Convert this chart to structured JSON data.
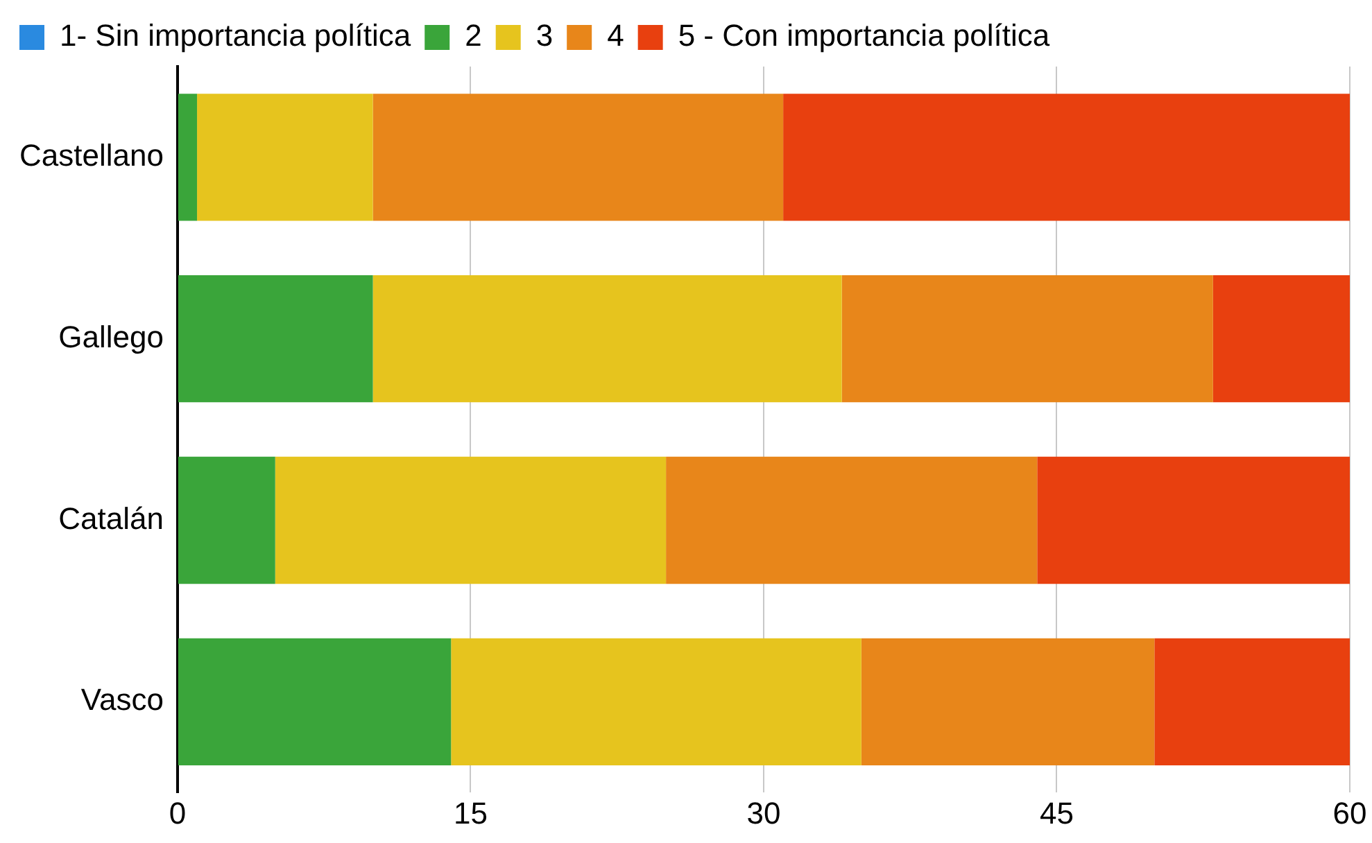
{
  "chart_data": {
    "type": "bar",
    "orientation": "horizontal",
    "stacked": true,
    "categories": [
      "Castellano",
      "Gallego",
      "Catalán",
      "Vasco"
    ],
    "series": [
      {
        "name": "1- Sin importancia política",
        "color": "#2a8ae0",
        "values": [
          0,
          0,
          0,
          0
        ]
      },
      {
        "name": "2",
        "color": "#3aa53a",
        "values": [
          1,
          10,
          5,
          14
        ]
      },
      {
        "name": "3",
        "color": "#e6c41e",
        "values": [
          9,
          24,
          20,
          21
        ]
      },
      {
        "name": "4",
        "color": "#e8861a",
        "values": [
          21,
          19,
          19,
          15
        ]
      },
      {
        "name": "5 - Con importancia política",
        "color": "#e8400f",
        "values": [
          29,
          7,
          16,
          10
        ]
      }
    ],
    "xlim": [
      0,
      60
    ],
    "xticks": [
      0,
      15,
      30,
      45,
      60
    ],
    "grid": "x",
    "legend": "top left"
  }
}
